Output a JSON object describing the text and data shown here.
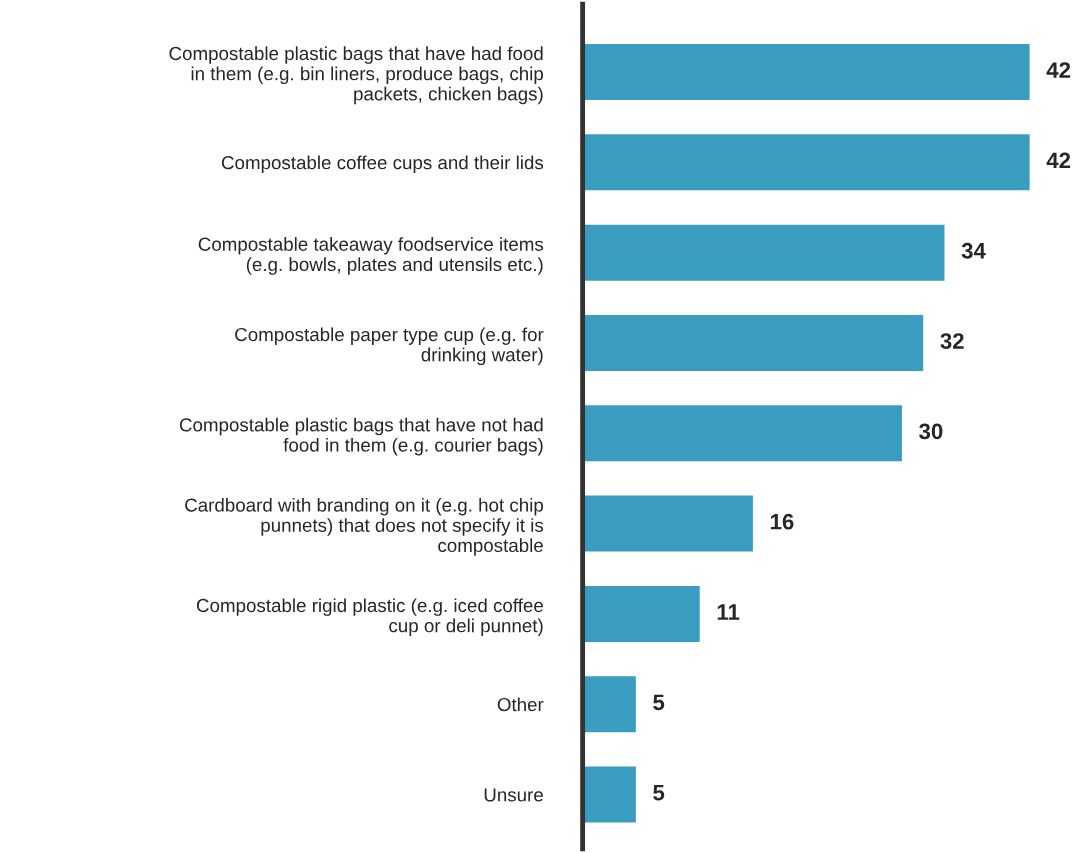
{
  "chart_data": {
    "type": "bar",
    "orientation": "horizontal",
    "categories": [
      "Compostable plastic bags that have had food\nin them (e.g. bin liners, produce bags, chip\npackets, chicken bags)",
      "Compostable coffee cups and their lids",
      "Compostable takeaway foodservice items\n(e.g. bowls, plates and utensils etc.)",
      "Compostable paper type cup (e.g. for\ndrinking water)",
      "Compostable plastic bags that have not had\nfood in them (e.g. courier bags)",
      "Cardboard with branding on it (e.g. hot chip\npunnets) that does not specify it is\ncompostable",
      "Compostable rigid plastic (e.g. iced coffee\ncup or deli punnet)",
      "Other",
      "Unsure"
    ],
    "values": [
      42,
      42,
      34,
      32,
      30,
      16,
      11,
      5,
      5
    ],
    "color": "#3a9dc0",
    "data_labels": true,
    "tick_labels": "y",
    "grid": false,
    "legend": false
  }
}
